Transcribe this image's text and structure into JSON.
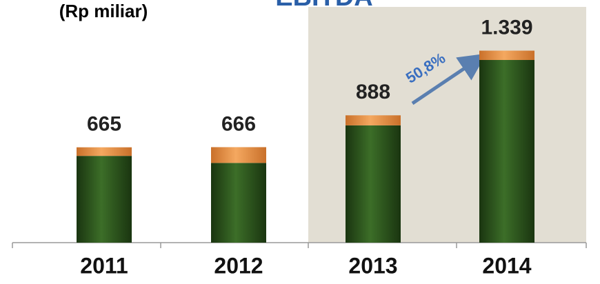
{
  "chart_data": {
    "type": "bar",
    "title": "EBITDA",
    "subtitle": "(Rp miliar)",
    "categories": [
      "2011",
      "2012",
      "2013",
      "2014"
    ],
    "series": [
      {
        "color": "#2e5a1f",
        "values": [
          605,
          556,
          818,
          1274
        ]
      },
      {
        "color": "#e8954a",
        "values": [
          60,
          110,
          70,
          65
        ]
      }
    ],
    "totals": [
      665,
      666,
      888,
      1339
    ],
    "value_labels": [
      "665",
      "666",
      "888",
      "1.339"
    ],
    "annotation": "50,8%"
  }
}
